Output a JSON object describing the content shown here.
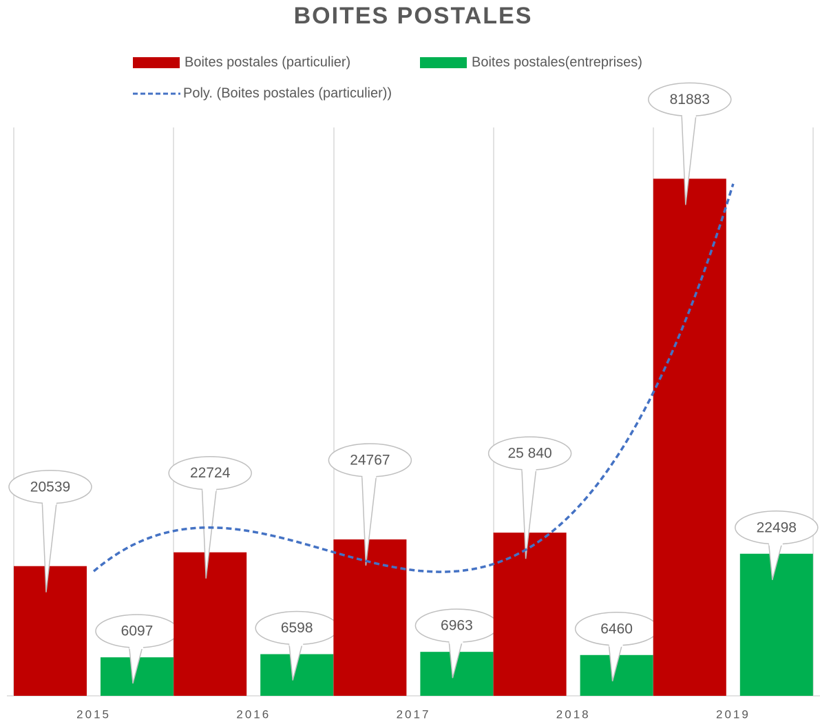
{
  "chart_data": {
    "type": "bar",
    "title": "BOITES POSTALES",
    "categories": [
      "2015",
      "2016",
      "2017",
      "2018",
      "2019"
    ],
    "series": [
      {
        "name": "Boites postales (particulier)",
        "color": "#c00000",
        "values": [
          20539,
          22724,
          24767,
          25840,
          81883
        ],
        "value_labels": [
          "20539",
          "22724",
          "24767",
          "25 840",
          "81883"
        ]
      },
      {
        "name": "Boites postales(entreprises)",
        "color": "#00b050",
        "values": [
          6097,
          6598,
          6963,
          6460,
          22498
        ]
      }
    ],
    "trendline": {
      "name": "Poly. (Boites postales (particulier))",
      "color": "#4472c4",
      "order": 3,
      "series": 0
    },
    "ylim": [
      0,
      90000
    ]
  }
}
